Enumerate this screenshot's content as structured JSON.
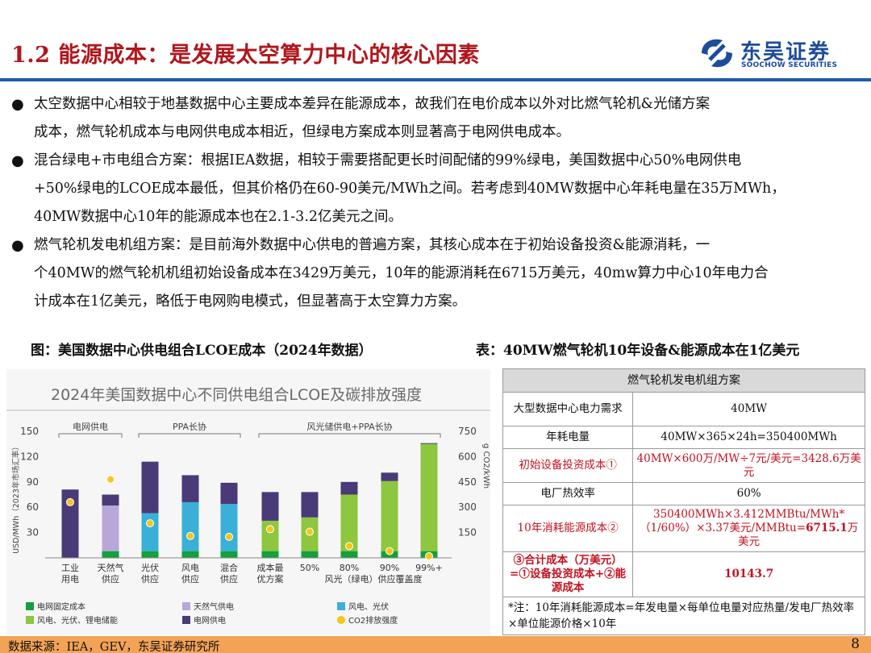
{
  "header": {
    "title": "1.2 能源成本：是发展太空算力中心的核心因素",
    "logo_cn": "东吴证券",
    "logo_en": "SOOCHOW SECURITIES"
  },
  "bullets": [
    {
      "lines": [
        "太空数据中心相较于地基数据中心主要成本差异在能源成本，故我们在电价成本以外对比燃气轮机&光储方案",
        "成本，燃气轮机成本与电网供电成本相近，但绿电方案成本则显著高于电网供电成本。"
      ]
    },
    {
      "lines": [
        "混合绿电+市电组合方案：根据IEA数据，相较于需要搭配更长时间配储的99%绿电，美国数据中心50%电网供电",
        "+50%绿电的LCOE成本最低，但其价格仍在60-90美元/MWh之间。若考虑到40MW数据中心年耗电量在35万MWh，",
        "40MW数据中心10年的能源成本也在2.1-3.2亿美元之间。"
      ]
    },
    {
      "lines": [
        "燃气轮机发电机组方案：是目前海外数据中心供电的普遍方案，其核心成本在于初始设备投资&能源消耗，一",
        "个40MW的燃气轮机机组初始设备成本在3429万美元，10年的能源消耗在6715万美元，40mw算力中心10年电力合",
        "计成本在1亿美元，略低于电网购电模式，但显著高于太空算力方案。"
      ]
    }
  ],
  "captions": {
    "left": "图：美国数据中心供电组合LCOE成本（2024年数据）",
    "right": "表：40MW燃气轮机10年设备&能源成本在1亿美元"
  },
  "chart_data": {
    "type": "bar",
    "title": "2024年美国数据中心不同供电组合LCOE及碳排放强度",
    "ylabel": "USD/MWh（2023年市场汇率）",
    "ylabel_right": "g CO2/kWh",
    "ylim": [
      0,
      150
    ],
    "ylim_right": [
      0,
      750
    ],
    "yticks": [
      "150",
      "120",
      "90",
      "60",
      "30"
    ],
    "yticks_right": [
      "750",
      "600",
      "450",
      "300",
      "150"
    ],
    "groups": [
      {
        "label": "电网供电",
        "start": 0,
        "end": 1
      },
      {
        "label": "PPA长协",
        "start": 2,
        "end": 4
      },
      {
        "label": "风光储供电+PPA长协",
        "start": 5,
        "end": 9
      }
    ],
    "categories": [
      "工业用电",
      "天然气供应",
      "光伏供应",
      "风电供应",
      "混合供应",
      "成本最优方案",
      "50%",
      "80%",
      "90%",
      "99%+"
    ],
    "x_group_label": "风光（绿电）供应覆盖度",
    "series": [
      {
        "name": "电网固定成本",
        "color": "#14a03c",
        "values": [
          0,
          8,
          8,
          8,
          8,
          8,
          8,
          8,
          8,
          8
        ]
      },
      {
        "name": "天然气供电",
        "color": "#b9a7d9",
        "values": [
          0,
          54,
          0,
          0,
          0,
          0,
          0,
          0,
          0,
          0
        ]
      },
      {
        "name": "风电、光伏",
        "color": "#3ab0d8",
        "values": [
          0,
          0,
          45,
          58,
          56,
          0,
          0,
          0,
          0,
          0
        ]
      },
      {
        "name": "风电、光伏、锂电储能",
        "color": "#8dc63f",
        "values": [
          0,
          0,
          0,
          0,
          0,
          36,
          40,
          67,
          83,
          127
        ]
      },
      {
        "name": "电网供电",
        "color": "#4a3a78",
        "values": [
          81,
          13,
          61,
          32,
          25,
          34,
          30,
          15,
          10,
          1
        ]
      }
    ],
    "co2": {
      "name": "CO2排放强度",
      "color": "#f5c518",
      "values": [
        330,
        465,
        205,
        130,
        125,
        170,
        155,
        70,
        40,
        10
      ]
    }
  },
  "table": {
    "header": "燃气轮机发电机组方案",
    "rows": [
      {
        "label": "大型数据中心电力需求",
        "value": "40MW",
        "red": false
      },
      {
        "label": "年耗电量",
        "value": "40MW×365×24h=350400MWh",
        "red": false
      },
      {
        "label": "初始设备投资成本①",
        "value": "40MW×600万/MW÷7元/美元=3428.6万美元",
        "red": true
      },
      {
        "label": "电厂热效率",
        "value": "60%",
        "red": false
      },
      {
        "label": "10年消耗能源成本②",
        "value_pre": "350400MWh×3.412MMBtu/MWh*（1/60%）×3.37美元/MMBtu=",
        "value_bold": "6715.1",
        "value_post": "万美元",
        "red": true
      }
    ],
    "total_label": "③合计成本（万美元）=①设备投资成本+②能源成本",
    "total_value": "10143.7",
    "note": "*注：10年消耗能源成本=年发电量×每单位电量对应热量/发电厂热效率×单位能源价格×10年"
  },
  "footer": {
    "source": "数据来源：IEA，GEV，东吴证券研究所",
    "page": "8"
  }
}
